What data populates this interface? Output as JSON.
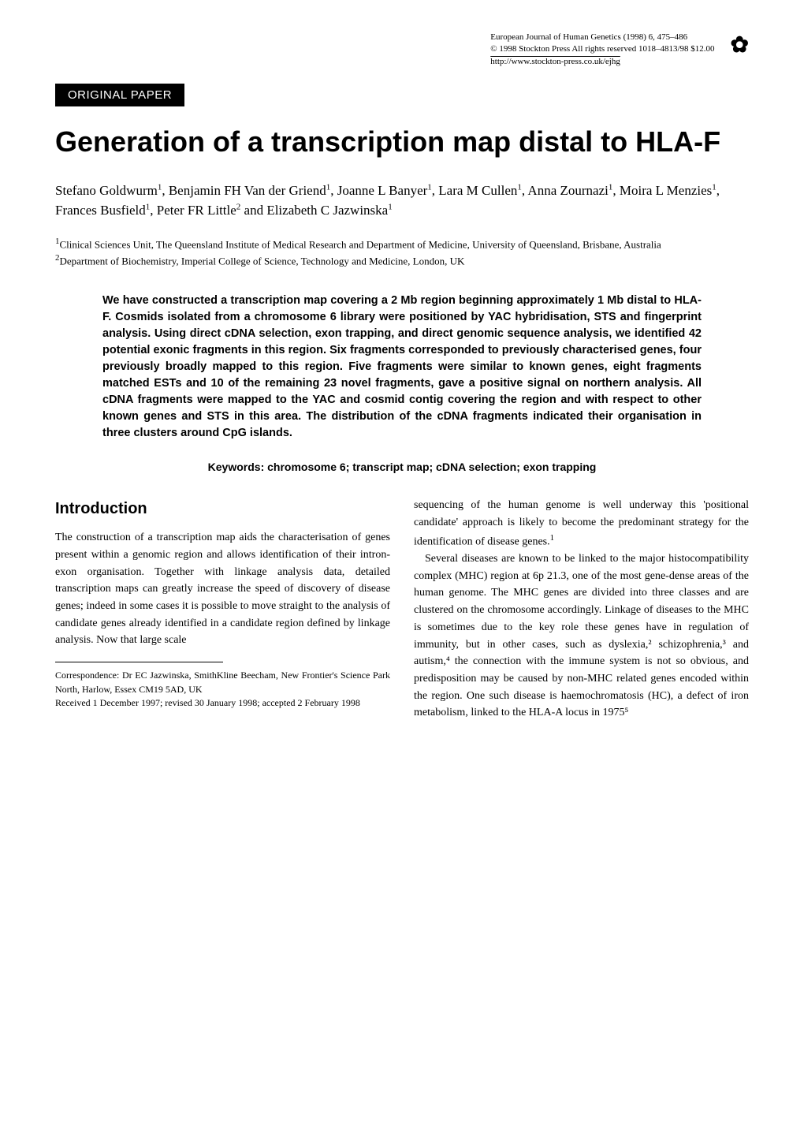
{
  "header": {
    "journal_line": "European Journal of Human Genetics (1998) 6, 475–486",
    "copyright_line": "© 1998 Stockton Press All rights reserved 1018–4813/98 $12.00",
    "url": "http://www.stockton-press.co.uk/ejhg",
    "logo_glyph": "✿"
  },
  "section_label": "ORIGINAL PAPER",
  "title": "Generation of a transcription map distal to HLA-F",
  "authors_html": "Stefano Goldwurm<span class='sup'>1</span>, Benjamin FH Van der Griend<span class='sup'>1</span>, Joanne L Banyer<span class='sup'>1</span>, Lara M Cullen<span class='sup'>1</span>, Anna Zournazi<span class='sup'>1</span>, Moira L Menzies<span class='sup'>1</span>, Frances Busfield<span class='sup'>1</span>, Peter FR Little<span class='sup'>2</span> and Elizabeth C Jazwinska<span class='sup'>1</span>",
  "affiliations": {
    "a1": "<span class='sup'>1</span>Clinical Sciences Unit, The Queensland Institute of Medical Research and Department of Medicine, University of Queensland, Brisbane, Australia",
    "a2": "<span class='sup'>2</span>Department of Biochemistry, Imperial College of Science, Technology and Medicine, London, UK"
  },
  "abstract": "We have constructed a transcription map covering a 2 Mb region beginning approximately 1 Mb distal to HLA-F. Cosmids isolated from a chromosome 6 library were positioned by YAC hybridisation, STS and fingerprint analysis. Using direct cDNA selection, exon trapping, and direct genomic sequence analysis, we identified 42 potential exonic fragments in this region. Six fragments corresponded to previously characterised genes, four previously broadly mapped to this region. Five fragments were similar to known genes, eight fragments matched ESTs and 10 of the remaining 23 novel fragments, gave a positive signal on northern analysis. All cDNA fragments were mapped to the YAC and cosmid contig covering the region and with respect to other known genes and STS in this area. The distribution of the cDNA fragments indicated their organisation in three clusters around CpG islands.",
  "keywords": "Keywords: chromosome 6; transcript map; cDNA selection; exon trapping",
  "intro_heading": "Introduction",
  "body": {
    "left_p1": "The construction of a transcription map aids the characterisation of genes present within a genomic region and allows identification of their intron-exon organisation. Together with linkage analysis data, detailed transcription maps can greatly increase the speed of discovery of disease genes; indeed in some cases it is possible to move straight to the analysis of candidate genes already identified in a candidate region defined by linkage analysis. Now that large scale",
    "right_p1": "sequencing of the human genome is well underway this 'positional candidate' approach is likely to become the predominant strategy for the identification of disease genes.",
    "right_p2": "Several diseases are known to be linked to the major histocompatibility complex (MHC) region at 6p 21.3, one of the most gene-dense areas of the human genome. The MHC genes are divided into three classes and are clustered on the chromosome accordingly. Linkage of diseases to the MHC is sometimes due to the key role these genes have in regulation of immunity, but in other cases, such as dyslexia,² schizophrenia,³ and autism,⁴ the connection with the immune system is not so obvious, and predisposition may be caused by non-MHC related genes encoded within the region. One such disease is haemochromatosis (HC), a defect of iron metabolism, linked to the HLA-A locus in 1975⁵",
    "right_p1_sup": "1"
  },
  "correspondence": {
    "line1": "Correspondence: Dr EC Jazwinska, SmithKline Beecham, New Frontier's Science Park North, Harlow, Essex CM19 5AD, UK",
    "line2": "Received 1 December 1997; revised 30 January 1998; accepted 2 February 1998"
  }
}
